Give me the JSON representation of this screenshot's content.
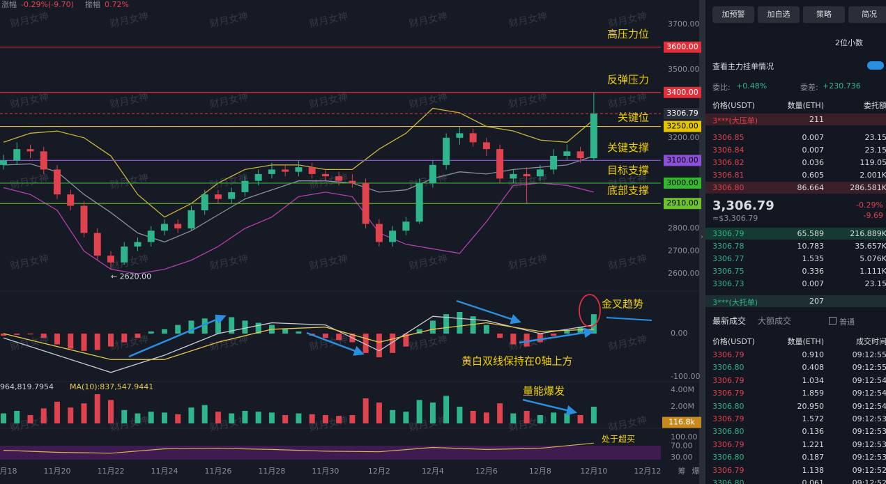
{
  "header": {
    "change_label": "涨幅",
    "change": "-0.29%(-9.70)",
    "amplitude_label": "振幅",
    "amplitude": "0.72%"
  },
  "watermark": "财月女神",
  "chart_data": [
    {
      "type": "candlestick",
      "xlim": [
        -0.13,
        24.42
      ],
      "ylim": [
        2548,
        3808
      ],
      "x": [
        0,
        0.5,
        1,
        1.5,
        2,
        2.5,
        3,
        3.5,
        4,
        4.5,
        5,
        5.5,
        6,
        6.5,
        7,
        7.5,
        8,
        8.5,
        9,
        9.5,
        10,
        10.5,
        11,
        11.5,
        12,
        12.5,
        13,
        13.5,
        14,
        14.5,
        15,
        15.5,
        16,
        16.5,
        17,
        17.5,
        18,
        18.5,
        19,
        19.5,
        20,
        20.5,
        21,
        21.5,
        22
      ],
      "candles": [
        [
          3080,
          3125,
          3060,
          3100
        ],
        [
          3100,
          3180,
          3080,
          3150
        ],
        [
          3150,
          3170,
          3110,
          3140
        ],
        [
          3140,
          3160,
          3040,
          3060
        ],
        [
          3060,
          3080,
          2930,
          2950
        ],
        [
          2950,
          2970,
          2880,
          2900
        ],
        [
          2900,
          2920,
          2760,
          2780
        ],
        [
          2780,
          2800,
          2660,
          2680
        ],
        [
          2680,
          2700,
          2620,
          2650
        ],
        [
          2650,
          2740,
          2640,
          2720
        ],
        [
          2720,
          2760,
          2700,
          2740
        ],
        [
          2740,
          2810,
          2720,
          2790
        ],
        [
          2790,
          2840,
          2770,
          2820
        ],
        [
          2820,
          2840,
          2780,
          2800
        ],
        [
          2800,
          2900,
          2790,
          2880
        ],
        [
          2880,
          2970,
          2860,
          2950
        ],
        [
          2950,
          2970,
          2910,
          2930
        ],
        [
          2930,
          2980,
          2910,
          2960
        ],
        [
          2960,
          3030,
          2940,
          3010
        ],
        [
          3010,
          3060,
          2990,
          3040
        ],
        [
          3040,
          3090,
          3020,
          3060
        ],
        [
          3060,
          3080,
          3030,
          3050
        ],
        [
          3050,
          3100,
          3030,
          3070
        ],
        [
          3070,
          3090,
          3020,
          3040
        ],
        [
          3040,
          3060,
          3010,
          3030
        ],
        [
          3030,
          3050,
          2990,
          3010
        ],
        [
          3010,
          3040,
          2980,
          3000
        ],
        [
          3000,
          3020,
          2800,
          2820
        ],
        [
          2820,
          2840,
          2720,
          2740
        ],
        [
          2740,
          2810,
          2720,
          2790
        ],
        [
          2790,
          2850,
          2770,
          2830
        ],
        [
          2830,
          3020,
          2820,
          3000
        ],
        [
          3000,
          3100,
          2980,
          3080
        ],
        [
          3080,
          3220,
          3060,
          3200
        ],
        [
          3200,
          3250,
          3170,
          3220
        ],
        [
          3220,
          3240,
          3160,
          3180
        ],
        [
          3180,
          3200,
          3120,
          3150
        ],
        [
          3150,
          3170,
          3000,
          3020
        ],
        [
          3020,
          3060,
          3000,
          3040
        ],
        [
          3040,
          3070,
          2910,
          3030
        ],
        [
          3030,
          3080,
          3010,
          3060
        ],
        [
          3060,
          3150,
          3040,
          3120
        ],
        [
          3120,
          3170,
          3100,
          3140
        ],
        [
          3140,
          3160,
          3090,
          3110
        ],
        [
          3110,
          3400,
          3100,
          3306.79
        ]
      ],
      "up_color": "#2fb58c",
      "down_color": "#e0424e",
      "bands": {
        "x": [
          0,
          1,
          2,
          3,
          4,
          5,
          6,
          7,
          8,
          9,
          10,
          11,
          12,
          13,
          14,
          15,
          16,
          17,
          18,
          19,
          20,
          21,
          22
        ],
        "lines": [
          {
            "color": "#c9b53a",
            "values": [
              3180,
              3220,
              3230,
              3200,
              3120,
              2950,
              2850,
              2910,
              3000,
              3060,
              3080,
              3080,
              3060,
              3060,
              3150,
              3220,
              3330,
              3310,
              3250,
              3230,
              3190,
              3180,
              3280
            ]
          },
          {
            "color": "#8c8f9c",
            "values": [
              3080,
              3085,
              3050,
              2950,
              2870,
              2780,
              2740,
              2790,
              2860,
              2930,
              2970,
              3010,
              3010,
              3000,
              2960,
              2970,
              3020,
              3050,
              3040,
              3060,
              3070,
              3080,
              3120
            ]
          },
          {
            "color": "#b23fae",
            "values": [
              2980,
              2950,
              2880,
              2700,
              2620,
              2600,
              2620,
              2660,
              2720,
              2800,
              2850,
              2940,
              2960,
              2940,
              2780,
              2730,
              2710,
              2690,
              2830,
              2990,
              3000,
              2990,
              2960
            ]
          }
        ]
      },
      "yticks": [
        {
          "value": 3700,
          "label": "3700.00"
        },
        {
          "value": 3500,
          "label": "3500.00"
        },
        {
          "value": 3200,
          "label": "3200.00"
        },
        {
          "value": 2800,
          "label": "2800.00"
        },
        {
          "value": 2700,
          "label": "2700.00"
        },
        {
          "value": 2600,
          "label": "2600.00"
        }
      ],
      "xticks": [
        {
          "value": 0,
          "label": "11月18"
        },
        {
          "value": 2,
          "label": "11月20"
        },
        {
          "value": 4,
          "label": "11月22"
        },
        {
          "value": 6,
          "label": "11月24"
        },
        {
          "value": 8,
          "label": "11月26"
        },
        {
          "value": 10,
          "label": "11月28"
        },
        {
          "value": 12,
          "label": "11月30"
        },
        {
          "value": 14,
          "label": "12月2"
        },
        {
          "value": 16,
          "label": "12月4"
        },
        {
          "value": 18,
          "label": "12月6"
        },
        {
          "value": 20,
          "label": "12月8"
        },
        {
          "value": 22,
          "label": "12月10"
        },
        {
          "value": 24,
          "label": "12月12"
        }
      ],
      "levels": [
        {
          "value": 3600,
          "label": "3600.00",
          "note": "高压力位",
          "color": "#e0303a",
          "label_color": "#ffffff"
        },
        {
          "value": 3400,
          "label": "3400.00",
          "note": "反弹压力",
          "color": "#e0303a",
          "label_color": "#ffffff"
        },
        {
          "value": 3306.79,
          "label": "3306.79",
          "note": "关键位",
          "color": "#b8333b",
          "label_color": "#ffffff",
          "dashed": true
        },
        {
          "value": 3250,
          "label": "3250.00",
          "color": "#e5c400",
          "label_color": "#000000"
        },
        {
          "value": 3100,
          "label": "3100.00",
          "note": "关键支撑",
          "color": "#8b4fd8",
          "label_color": "#000000"
        },
        {
          "value": 3000,
          "label": "3000.00",
          "note": "目标支撑",
          "color": "#33b82e",
          "label_color": "#000000"
        },
        {
          "value": 2910,
          "label": "2910.00",
          "note": "底部支撑",
          "color": "#6cc22d",
          "label_color": "#000000"
        }
      ],
      "low_marker": {
        "value": 2620,
        "label": "← 2620.00",
        "index": 8
      },
      "footer_icons": [
        "筹",
        "爆"
      ]
    },
    {
      "type": "macd",
      "ylim": [
        -122.6,
        87.1
      ],
      "yticks": [
        {
          "value": 0,
          "label": "0.00"
        },
        {
          "value": -100,
          "label": "-100.00"
        }
      ],
      "hist": [
        -5,
        -3,
        -2,
        -10,
        -25,
        -35,
        -40,
        -38,
        -30,
        -20,
        -10,
        5,
        10,
        20,
        30,
        35,
        40,
        38,
        30,
        25,
        20,
        12,
        5,
        -5,
        -10,
        -15,
        -20,
        -45,
        -55,
        -45,
        -30,
        10,
        30,
        45,
        50,
        40,
        20,
        -10,
        -25,
        -30,
        -20,
        -5,
        8,
        15,
        45
      ],
      "x": [
        0,
        2,
        4,
        6,
        8,
        10,
        12,
        14,
        16,
        18,
        20,
        22
      ],
      "lines": [
        {
          "color": "#c8ccd4",
          "values": [
            -10,
            -50,
            -90,
            -50,
            0,
            25,
            20,
            -40,
            40,
            30,
            0,
            20
          ]
        },
        {
          "color": "#e6c84a",
          "values": [
            0,
            -30,
            -60,
            -60,
            -20,
            10,
            15,
            -20,
            10,
            25,
            5,
            10
          ]
        }
      ],
      "annotations": [
        "金叉趋势",
        "黄白双线保持在0轴上方"
      ]
    },
    {
      "type": "volume",
      "ylim": [
        0,
        5
      ],
      "yticks": [
        {
          "value": 4,
          "label": "4.00M"
        },
        {
          "value": 2,
          "label": "2.00M"
        }
      ],
      "values": [
        1.2,
        1.5,
        1.0,
        1.8,
        2.6,
        1.9,
        2.4,
        3.5,
        2.8,
        1.6,
        1.2,
        1.4,
        1.3,
        1.1,
        1.9,
        2.2,
        1.4,
        1.2,
        1.5,
        1.4,
        1.3,
        1.0,
        1.2,
        1.1,
        1.0,
        0.9,
        1.0,
        3.0,
        2.5,
        1.6,
        1.4,
        2.8,
        2.5,
        3.3,
        2.0,
        1.5,
        1.3,
        2.4,
        1.2,
        1.5,
        1.0,
        1.3,
        1.2,
        1.0,
        2.0
      ],
      "last": {
        "value": 0.1168,
        "label": "116.8k"
      },
      "legend": [
        "964,819.7954",
        "MA(10):837,547.9441"
      ],
      "annotations": [
        "量能爆发"
      ]
    },
    {
      "type": "oscillator",
      "ylim": [
        10.6,
        119.3
      ],
      "yticks": [
        {
          "value": 100,
          "label": "100.00"
        },
        {
          "value": 70,
          "label": "70.00"
        },
        {
          "value": 30,
          "label": "30.00"
        }
      ],
      "x": [
        0,
        2,
        4,
        6,
        8,
        10,
        12,
        14,
        16,
        18,
        20,
        22
      ],
      "lines": [
        {
          "color": "#d9b25a",
          "values": [
            55,
            48,
            45,
            60,
            62,
            58,
            52,
            50,
            65,
            58,
            62,
            80
          ]
        }
      ],
      "annotations": [
        "处于超买"
      ]
    }
  ],
  "side": {
    "buttons": [
      "加预警",
      "加自选",
      "策略",
      "简况"
    ],
    "decimals": "2位小数",
    "main_orders": "查看主力挂单情况",
    "ratio_label": "委比:",
    "ratio": "+0.48%",
    "diff_label": "委差:",
    "diff": "+230.736",
    "book_headers": [
      "价格(USDT)",
      "数量(ETH)",
      "委托额"
    ],
    "big_ask": {
      "price": "3***(大压单)",
      "qty": "211"
    },
    "asks": [
      [
        "3306.85",
        "0.007",
        "23.15"
      ],
      [
        "3306.84",
        "0.007",
        "23.15"
      ],
      [
        "3306.82",
        "0.036",
        "119.05"
      ],
      [
        "3306.81",
        "0.605",
        "2.001K"
      ],
      [
        "3306.80",
        "86.664",
        "286.581K"
      ]
    ],
    "last": "3,306.79",
    "last_usd": "≈$3,306.79",
    "pct": "-0.29%",
    "chg": "-9.69",
    "bids": [
      [
        "3306.79",
        "65.589",
        "216.889K"
      ],
      [
        "3306.78",
        "10.783",
        "35.657K"
      ],
      [
        "3306.77",
        "1.535",
        "5.076K"
      ],
      [
        "3306.75",
        "0.336",
        "1.111K"
      ],
      [
        "3306.73",
        "0.007",
        "23.15"
      ]
    ],
    "big_bid": {
      "price": "3***(大托单)",
      "qty": "207"
    },
    "tabs": [
      "最新成交",
      "大额成交"
    ],
    "filter": "普通",
    "trade_headers": [
      "价格(USDT)",
      "数量(ETH)",
      "成交时间"
    ],
    "trades": [
      [
        "3306.79",
        "0.910",
        "09:12:55"
      ],
      [
        "3306.80",
        "0.408",
        "09:12:55"
      ],
      [
        "3306.79",
        "1.034",
        "09:12:54"
      ],
      [
        "3306.79",
        "1.859",
        "09:12:54"
      ],
      [
        "3306.80",
        "20.950",
        "09:12:54"
      ],
      [
        "3306.79",
        "1.572",
        "09:12:53"
      ],
      [
        "3306.80",
        "0.136",
        "09:12:53"
      ],
      [
        "3306.79",
        "1.221",
        "09:12:53"
      ],
      [
        "3306.80",
        "0.187",
        "09:12:53"
      ],
      [
        "3306.79",
        "1.138",
        "09:12:52"
      ],
      [
        "3306.80",
        "0.061",
        "09:12:52"
      ]
    ],
    "trade_colors": [
      "#e0424e",
      "#2fb58c",
      "#e0424e",
      "#e0424e",
      "#2fb58c",
      "#e0424e",
      "#2fb58c",
      "#e0424e",
      "#2fb58c",
      "#e0424e",
      "#2fb58c"
    ]
  }
}
